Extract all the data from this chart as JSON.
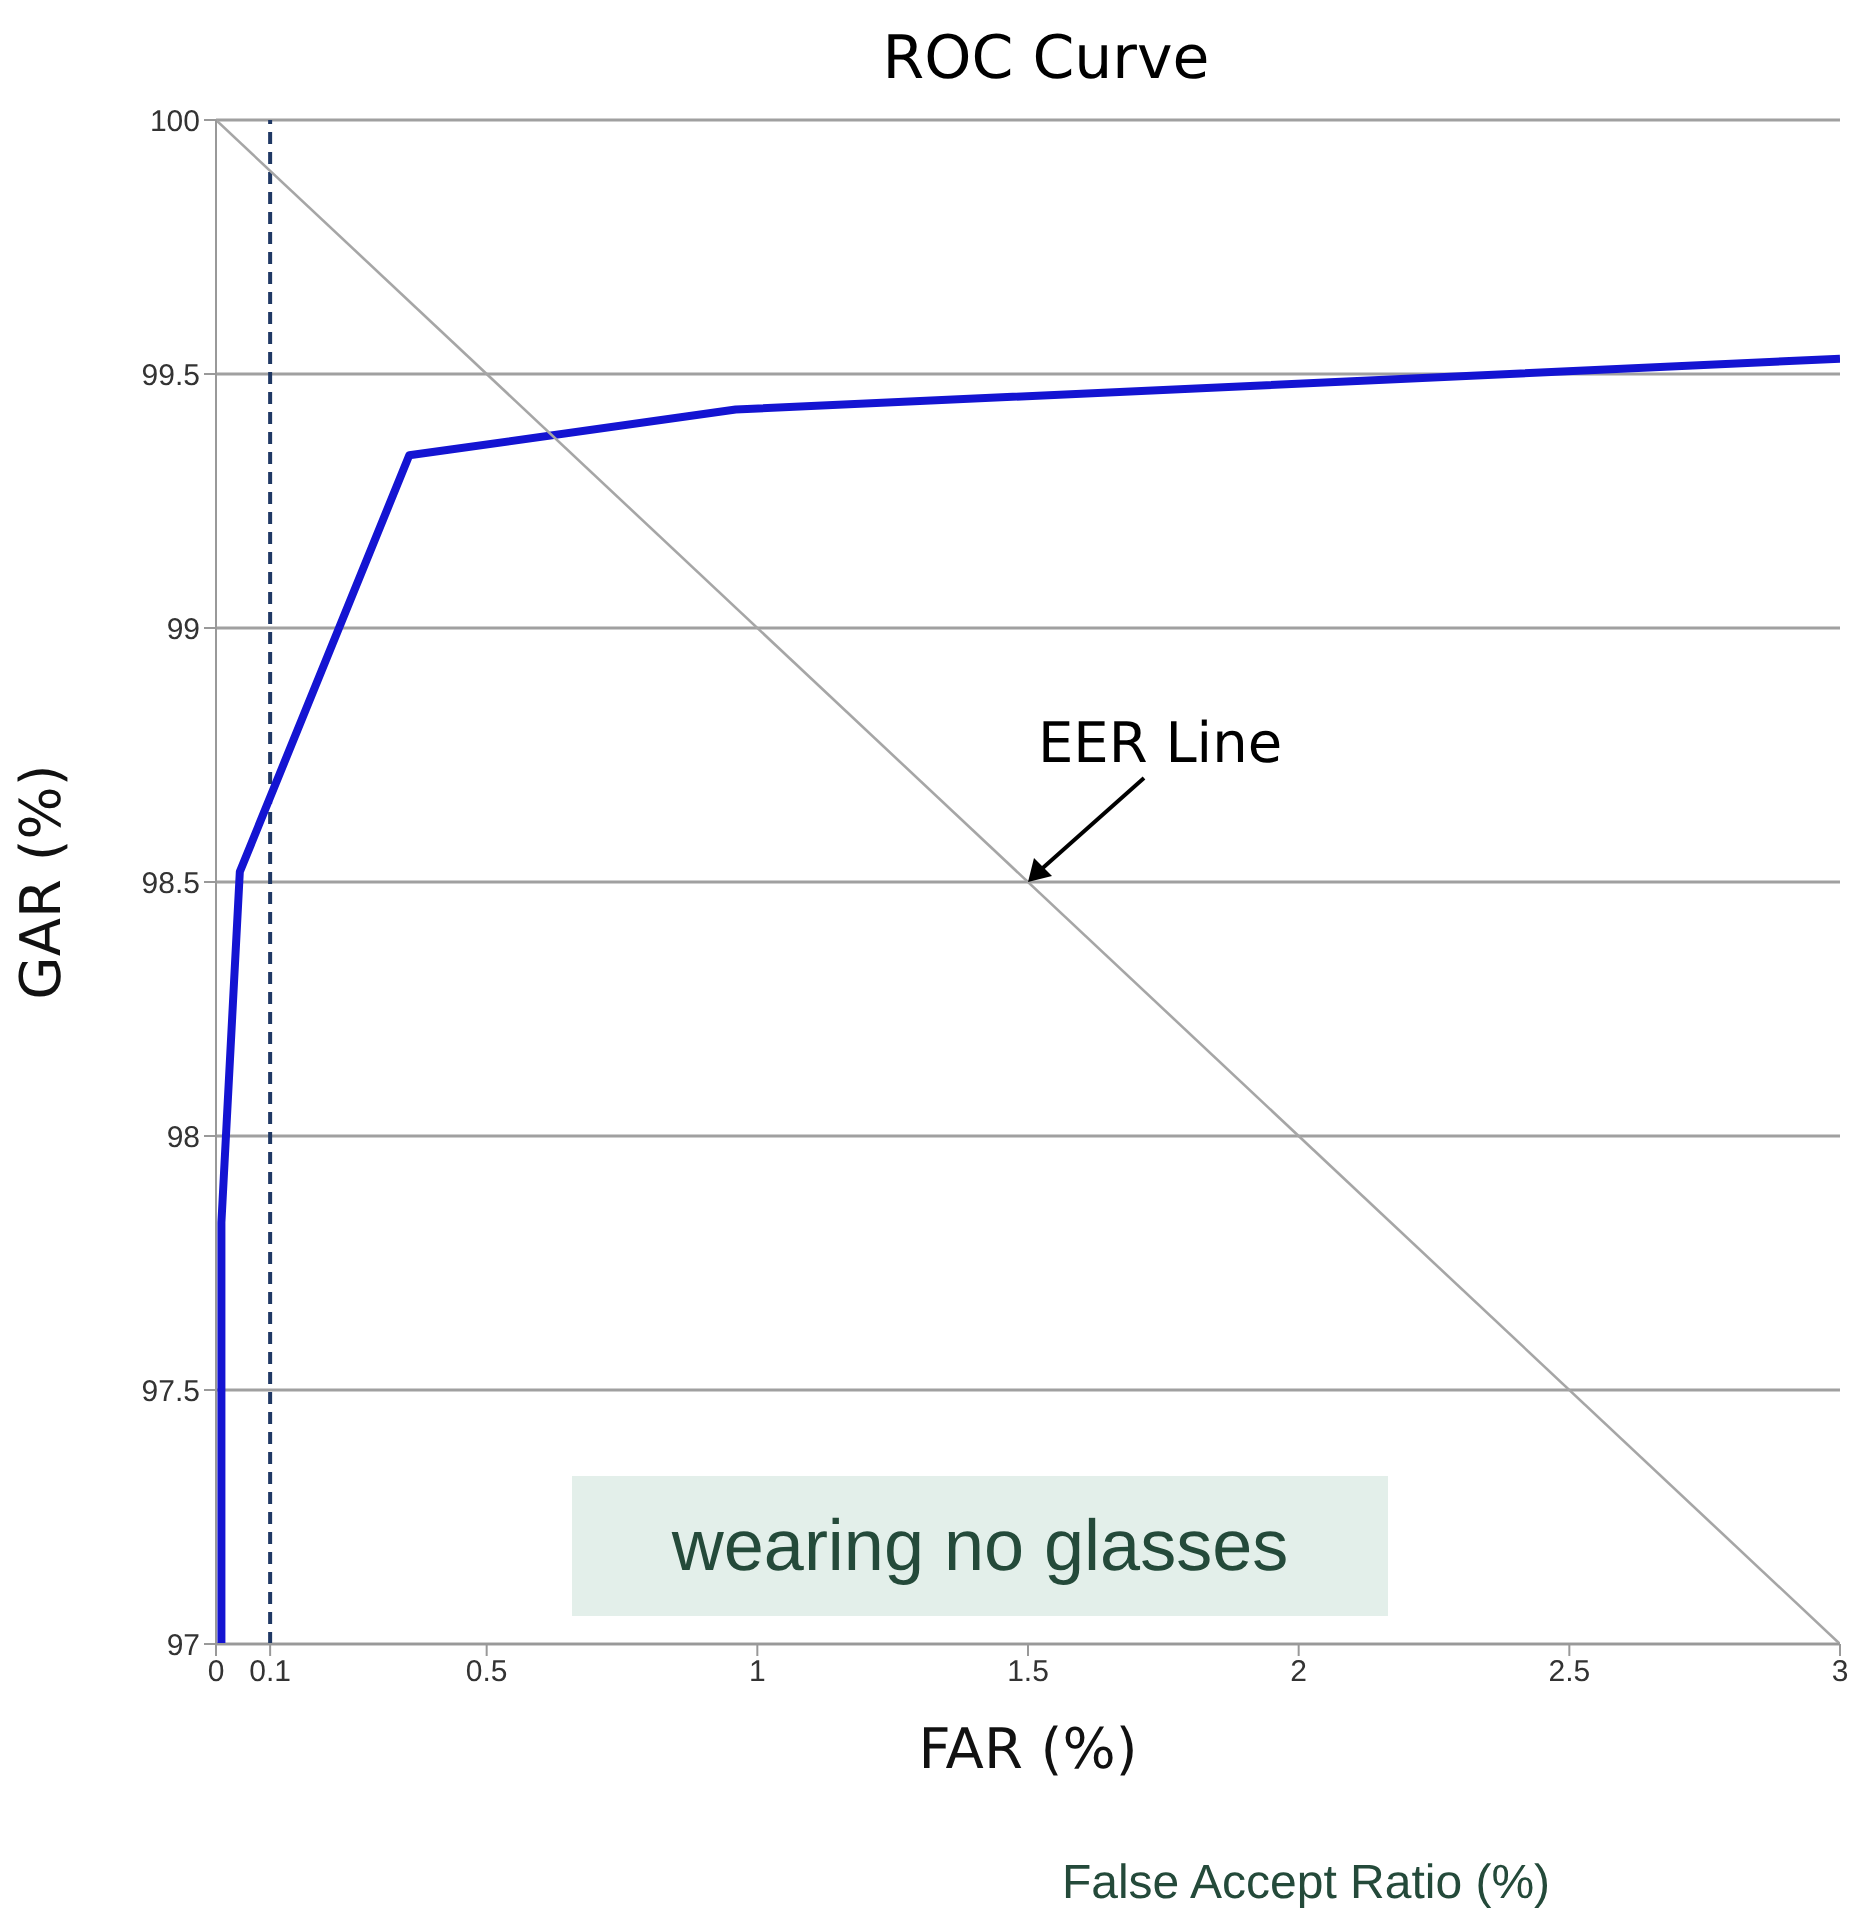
{
  "chart_data": {
    "type": "line",
    "title": "ROC Curve",
    "xlabel": "FAR (%)",
    "ylabel": "GAR (%)",
    "xlim": [
      0,
      3
    ],
    "xticks": [
      0,
      0.1,
      0.5,
      1,
      1.5,
      2,
      2.5,
      3
    ],
    "ylim": [
      97,
      100
    ],
    "yticks": [
      97,
      97.5,
      98,
      98.5,
      99,
      99.5,
      100
    ],
    "grid": "y",
    "legend": false,
    "marker": "none",
    "series": [
      {
        "color": "#1414d2",
        "x": [
          0.01,
          0.01,
          0.044,
          0.357,
          0.96,
          3
        ],
        "values": [
          97,
          97.83,
          98.52,
          99.34,
          99.43,
          99.53
        ]
      },
      {
        "color": "#a6a6a6",
        "x": [
          0,
          3
        ],
        "values": [
          100,
          97
        ]
      }
    ],
    "ref_lines": [
      {
        "axis": "x",
        "value": 0.1,
        "color": "#1f3864",
        "line_style": "dashed"
      }
    ],
    "annotations": [
      {
        "text": "EER Line",
        "x": 1.5,
        "y": 98.5
      },
      "wearing no glasses",
      "False Accept Ratio (%)"
    ]
  }
}
